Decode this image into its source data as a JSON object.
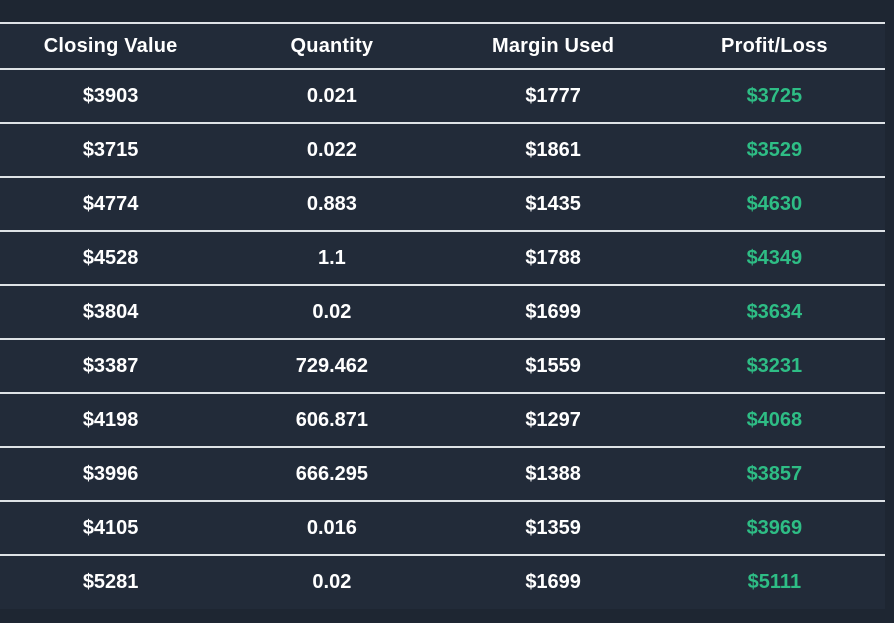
{
  "colors": {
    "page_background": "#1e2632",
    "table_background": "#222b39",
    "row_border": "#dee2e6",
    "text": "#ffffff",
    "profit_green": "#2ebd85"
  },
  "table": {
    "headers": [
      "Closing Value",
      "Quantity",
      "Margin Used",
      "Profit/Loss"
    ],
    "rows": [
      {
        "closing_value": "$3903",
        "quantity": "0.021",
        "margin_used": "$1777",
        "profit_loss": "$3725"
      },
      {
        "closing_value": "$3715",
        "quantity": "0.022",
        "margin_used": "$1861",
        "profit_loss": "$3529"
      },
      {
        "closing_value": "$4774",
        "quantity": "0.883",
        "margin_used": "$1435",
        "profit_loss": "$4630"
      },
      {
        "closing_value": "$4528",
        "quantity": "1.1",
        "margin_used": "$1788",
        "profit_loss": "$4349"
      },
      {
        "closing_value": "$3804",
        "quantity": "0.02",
        "margin_used": "$1699",
        "profit_loss": "$3634"
      },
      {
        "closing_value": "$3387",
        "quantity": "729.462",
        "margin_used": "$1559",
        "profit_loss": "$3231"
      },
      {
        "closing_value": "$4198",
        "quantity": "606.871",
        "margin_used": "$1297",
        "profit_loss": "$4068"
      },
      {
        "closing_value": "$3996",
        "quantity": "666.295",
        "margin_used": "$1388",
        "profit_loss": "$3857"
      },
      {
        "closing_value": "$4105",
        "quantity": "0.016",
        "margin_used": "$1359",
        "profit_loss": "$3969"
      },
      {
        "closing_value": "$5281",
        "quantity": "0.02",
        "margin_used": "$1699",
        "profit_loss": "$5111"
      }
    ]
  }
}
